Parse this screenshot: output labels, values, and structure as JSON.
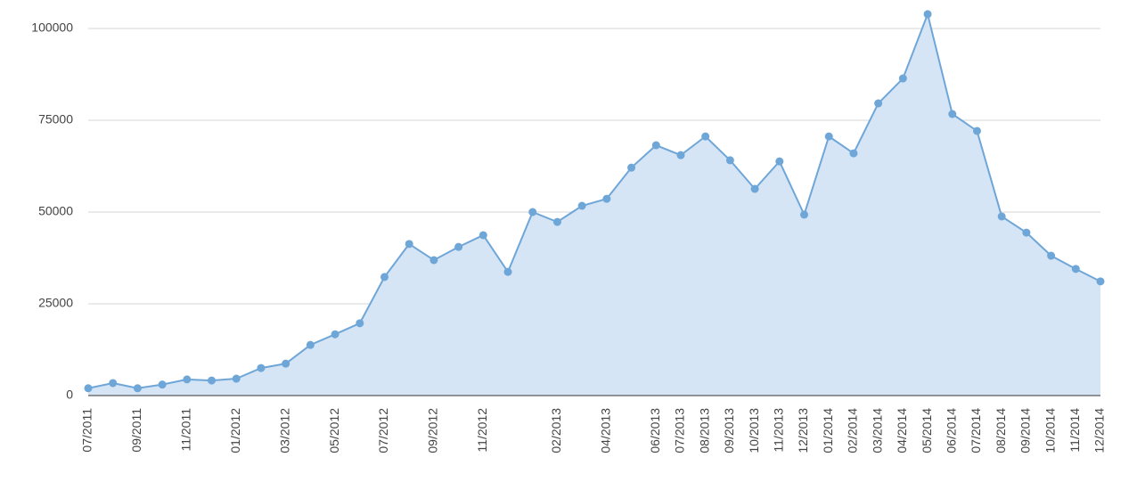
{
  "chart_data": {
    "type": "area",
    "categories": [
      "07/2011",
      null,
      "09/2011",
      null,
      "11/2011",
      null,
      "01/2012",
      null,
      "03/2012",
      null,
      "05/2012",
      null,
      "07/2012",
      null,
      "09/2012",
      null,
      "11/2012",
      null,
      null,
      "02/2013",
      null,
      "04/2013",
      null,
      "06/2013",
      "07/2013",
      "08/2013",
      "09/2013",
      "10/2013",
      "11/2013",
      "12/2013",
      "01/2014",
      "02/2014",
      "03/2014",
      "04/2014",
      "05/2014",
      "06/2014",
      "07/2014",
      "08/2014",
      "09/2014",
      "10/2014",
      "11/2014",
      "12/2014"
    ],
    "values": [
      2000,
      3400,
      2000,
      3000,
      4400,
      4100,
      4600,
      7500,
      8700,
      13800,
      16700,
      19700,
      32300,
      41300,
      36900,
      40500,
      43700,
      33700,
      50000,
      47300,
      51700,
      53600,
      62100,
      68200,
      65500,
      70600,
      64100,
      56300,
      63800,
      49300,
      70600,
      66000,
      79600,
      86400,
      103900,
      76700,
      72100,
      48800,
      44400,
      38100,
      34500,
      31100
    ],
    "color": "#6fa6d8",
    "fill": "#d5e5f5",
    "ylim": [
      0,
      105000
    ],
    "yticks": [
      0,
      25000,
      50000,
      75000,
      100000
    ],
    "grid": true
  }
}
